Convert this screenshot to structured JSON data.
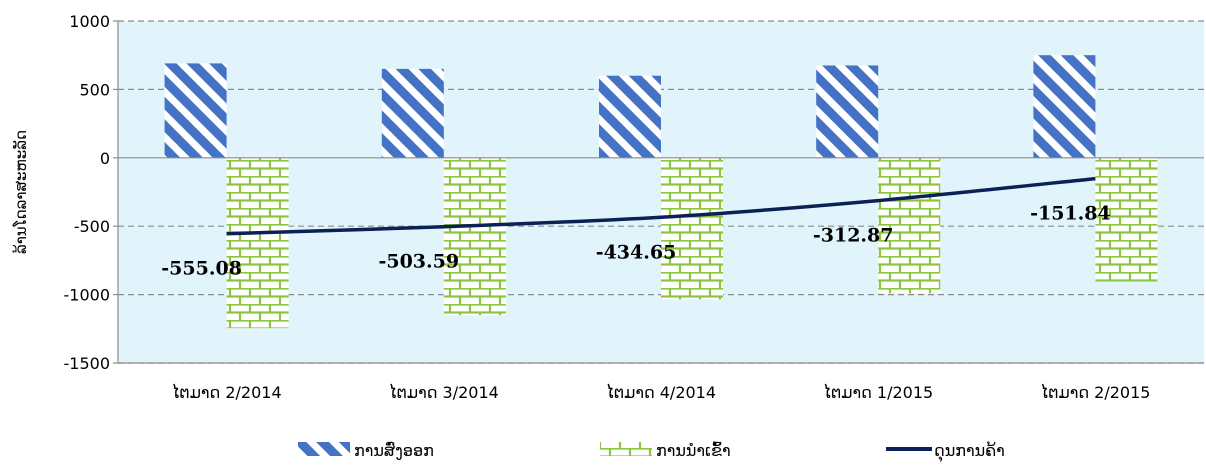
{
  "chart_data": {
    "type": "bar",
    "title": "",
    "ylabel": "ລ້ານໂດລາສະຫະລັດ",
    "xlabel": "",
    "ylim": [
      -1500,
      1000
    ],
    "yticks": [
      "1000",
      "500",
      "0",
      "-500",
      "-1000",
      "-1500"
    ],
    "grid": true,
    "legend_position": "bottom",
    "categories": [
      "ໄຕມາດ 2/2014",
      "ໄຕມາດ 3/2014",
      "ໄຕມາດ 4/2014",
      "ໄຕມາດ 1/2015",
      "ໄຕມາດ 2/2015"
    ],
    "series": [
      {
        "name": "ການສົ່ງອອກ",
        "kind": "bar",
        "values": [
          690,
          650,
          600,
          675,
          750
        ],
        "color": "#4472c4"
      },
      {
        "name": "ການນຳເຂົ້າ",
        "kind": "bar",
        "values": [
          -1245,
          -1150,
          -1035,
          -990,
          -905
        ],
        "color": "#8cc63f"
      },
      {
        "name": "ດຸນການຄ້າ",
        "kind": "line",
        "values": [
          -555.08,
          -503.59,
          -434.65,
          -312.87,
          -151.84
        ],
        "color": "#0b2156",
        "labels": [
          "-555.08",
          "-503.59",
          "-434.65",
          "-312.87",
          "-151.84"
        ]
      }
    ]
  }
}
